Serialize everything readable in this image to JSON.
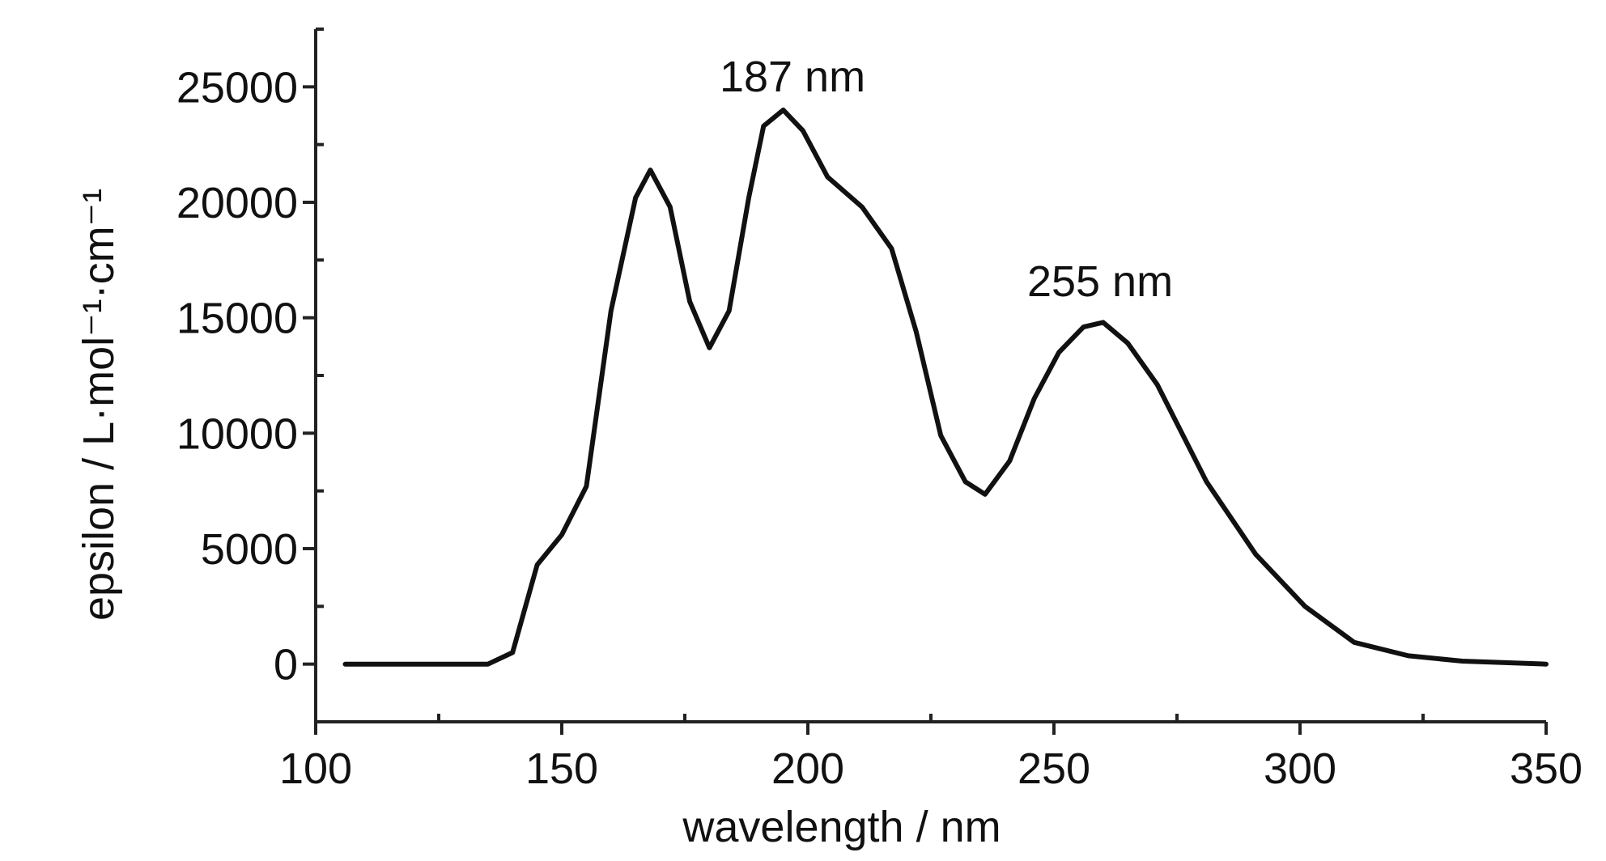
{
  "chart_data": {
    "type": "line",
    "xlabel": "wavelength / nm",
    "ylabel": "epsilon / L·mol⁻¹·cm⁻¹",
    "annotations": [
      "187 nm",
      "255 nm"
    ],
    "x": [
      106,
      135,
      140,
      145,
      150,
      155,
      160,
      165,
      168,
      172,
      176,
      180,
      184,
      188,
      191,
      195,
      199,
      204,
      211,
      217,
      222,
      227,
      232,
      236,
      241,
      246,
      251,
      256,
      260,
      265,
      271,
      281,
      291,
      301,
      311,
      322,
      333,
      350
    ],
    "series": [
      {
        "name": "epsilon",
        "color": "#111111",
        "values": [
          0,
          0,
          500,
          4300,
          5600,
          7700,
          15300,
          20200,
          21400,
          19800,
          15700,
          13700,
          15300,
          20200,
          23300,
          24000,
          23100,
          21100,
          19800,
          18000,
          14400,
          9900,
          7900,
          7350,
          8800,
          11500,
          13500,
          14600,
          14800,
          13900,
          12100,
          7900,
          4750,
          2500,
          940,
          360,
          130,
          0
        ]
      }
    ],
    "xlim": [
      100,
      350
    ],
    "xticks": [
      100,
      150,
      200,
      250,
      300,
      350
    ],
    "xminorticks": [
      125,
      175,
      225,
      275,
      325
    ],
    "ylim": [
      -2500,
      27500
    ],
    "yticks": [
      0,
      5000,
      10000,
      15000,
      20000,
      25000
    ],
    "yminorticks": [
      -2500,
      2500,
      7500,
      12500,
      17500,
      22500,
      27500
    ],
    "grid": false
  }
}
